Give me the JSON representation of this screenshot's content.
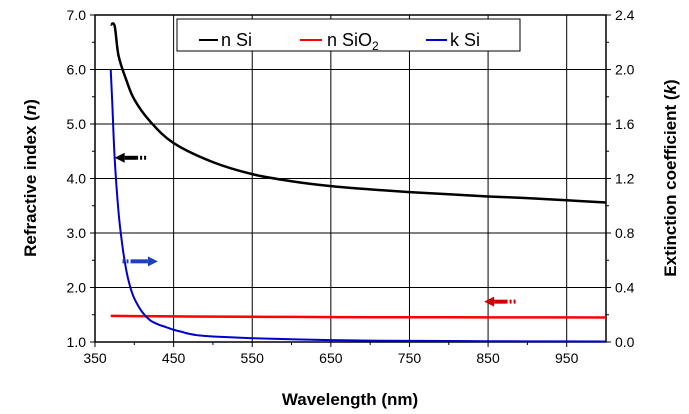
{
  "chart_data": {
    "type": "line",
    "xlabel": "Wavelength (nm)",
    "ylabel_left": "Refractive index (",
    "ylabel_left_var": "n",
    "ylabel_left_close": ")",
    "ylabel_right": "Extinction coefficient (",
    "ylabel_right_var": "k",
    "ylabel_right_close": ")",
    "xlim": [
      350,
      1000
    ],
    "ylim_left": [
      1.0,
      7.0
    ],
    "ylim_right": [
      0.0,
      2.4
    ],
    "x_ticks": [
      "350",
      "450",
      "550",
      "650",
      "750",
      "850",
      "950"
    ],
    "y_left_ticks": [
      "1.0",
      "2.0",
      "3.0",
      "4.0",
      "5.0",
      "6.0",
      "7.0"
    ],
    "y_right_ticks": [
      "0.0",
      "0.4",
      "0.8",
      "1.2",
      "1.6",
      "2.0",
      "2.4"
    ],
    "grid": true,
    "legend_position": "top",
    "legend": [
      {
        "label": "n Si",
        "sub": ""
      },
      {
        "label": "n SiO",
        "sub": "2"
      },
      {
        "label": "k Si",
        "sub": ""
      }
    ],
    "series": [
      {
        "name": "n Si",
        "axis": "left",
        "color": "#000000",
        "x": [
          370,
          375,
          380,
          390,
          400,
          420,
          450,
          500,
          550,
          600,
          650,
          700,
          750,
          800,
          850,
          900,
          950,
          1000
        ],
        "y": [
          6.82,
          6.8,
          6.25,
          5.8,
          5.45,
          5.05,
          4.65,
          4.3,
          4.08,
          3.95,
          3.86,
          3.8,
          3.75,
          3.71,
          3.67,
          3.64,
          3.6,
          3.56
        ]
      },
      {
        "name": "n SiO2",
        "axis": "left",
        "color": "#ff0000",
        "x": [
          370,
          400,
          450,
          500,
          600,
          700,
          800,
          900,
          1000
        ],
        "y": [
          1.48,
          1.475,
          1.47,
          1.465,
          1.46,
          1.455,
          1.453,
          1.452,
          1.45
        ]
      },
      {
        "name": "k Si",
        "axis": "right",
        "color": "#0000cc",
        "x": [
          370,
          372,
          375,
          380,
          385,
          390,
          395,
          400,
          410,
          420,
          430,
          440,
          450,
          460,
          470,
          480,
          500,
          550,
          600,
          650,
          700,
          800,
          900,
          1000
        ],
        "y": [
          2.0,
          1.75,
          1.35,
          0.95,
          0.7,
          0.52,
          0.4,
          0.32,
          0.22,
          0.16,
          0.13,
          0.11,
          0.09,
          0.075,
          0.06,
          0.05,
          0.04,
          0.028,
          0.02,
          0.014,
          0.01,
          0.007,
          0.005,
          0.004
        ]
      }
    ],
    "annotations": [
      {
        "type": "arrow",
        "color": "#000000",
        "points_to": "left",
        "x_start": 415,
        "x_end": 375,
        "y_left": 4.38
      },
      {
        "type": "arrow",
        "color": "#1f3fbf",
        "points_to": "right",
        "x_start": 385,
        "x_end": 430,
        "y_left": 2.48
      },
      {
        "type": "arrow",
        "color": "#cc0000",
        "points_to": "left",
        "x_start": 885,
        "x_end": 845,
        "y_left": 1.74
      }
    ]
  }
}
